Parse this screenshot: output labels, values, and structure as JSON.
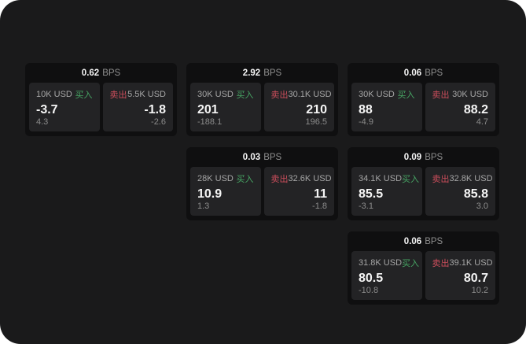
{
  "colors": {
    "background": "#1a1a1b",
    "card_background": "#0f0f10",
    "panel_background": "#232325",
    "buy_accent": "#47a564",
    "sell_accent": "#cc4e5c"
  },
  "labels": {
    "bps": "BPS",
    "buy": "买入",
    "sell": "卖出"
  },
  "cards": [
    {
      "bps": "0.62",
      "grid": {
        "row": 1,
        "col": 1
      },
      "buy": {
        "amount": "10K USD",
        "value": "-3.7",
        "sub": "4.3"
      },
      "sell": {
        "amount": "5.5K USD",
        "value": "-1.8",
        "sub": "-2.6"
      }
    },
    {
      "bps": "2.92",
      "grid": {
        "row": 1,
        "col": 2
      },
      "buy": {
        "amount": "30K USD",
        "value": "201",
        "sub": "-188.1"
      },
      "sell": {
        "amount": "30.1K USD",
        "value": "210",
        "sub": "196.5"
      }
    },
    {
      "bps": "0.06",
      "grid": {
        "row": 1,
        "col": 3
      },
      "buy": {
        "amount": "30K USD",
        "value": "88",
        "sub": "-4.9"
      },
      "sell": {
        "amount": "30K USD",
        "value": "88.2",
        "sub": "4.7"
      }
    },
    {
      "bps": "0.03",
      "grid": {
        "row": 2,
        "col": 2
      },
      "buy": {
        "amount": "28K USD",
        "value": "10.9",
        "sub": "1.3"
      },
      "sell": {
        "amount": "32.6K USD",
        "value": "11",
        "sub": "-1.8"
      }
    },
    {
      "bps": "0.09",
      "grid": {
        "row": 2,
        "col": 3
      },
      "buy": {
        "amount": "34.1K USD",
        "value": "85.5",
        "sub": "-3.1"
      },
      "sell": {
        "amount": "32.8K USD",
        "value": "85.8",
        "sub": "3.0"
      }
    },
    {
      "bps": "0.06",
      "grid": {
        "row": 3,
        "col": 3
      },
      "buy": {
        "amount": "31.8K USD",
        "value": "80.5",
        "sub": "-10.8"
      },
      "sell": {
        "amount": "39.1K USD",
        "value": "80.7",
        "sub": "10.2"
      }
    }
  ]
}
